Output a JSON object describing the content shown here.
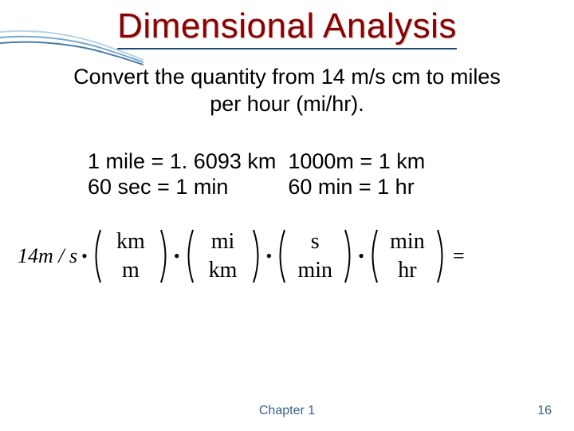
{
  "title": "Dimensional Analysis",
  "subtitle_line1": "Convert the quantity from 14 m/s cm to miles",
  "subtitle_line2": "per hour (mi/hr).",
  "conv_line1": "1 mile = 1. 6093 km  1000m = 1 km",
  "conv_line2": "60 sec = 1 min          60 min = 1 hr",
  "lhs": "14m / s",
  "groups": [
    {
      "top": "km",
      "bot": "m"
    },
    {
      "top": "mi",
      "bot": "km"
    },
    {
      "top": "s",
      "bot": "min"
    },
    {
      "top": "min",
      "bot": "hr"
    }
  ],
  "footer_center": "Chapter 1",
  "footer_page": "16",
  "colors": {
    "title": "#8b0000",
    "title_underline": "#1a4a7a",
    "footer": "#385d8a",
    "swoosh1": "#b8d4e8",
    "swoosh2": "#7aa8cc",
    "swoosh3": "#4a7aa8"
  }
}
